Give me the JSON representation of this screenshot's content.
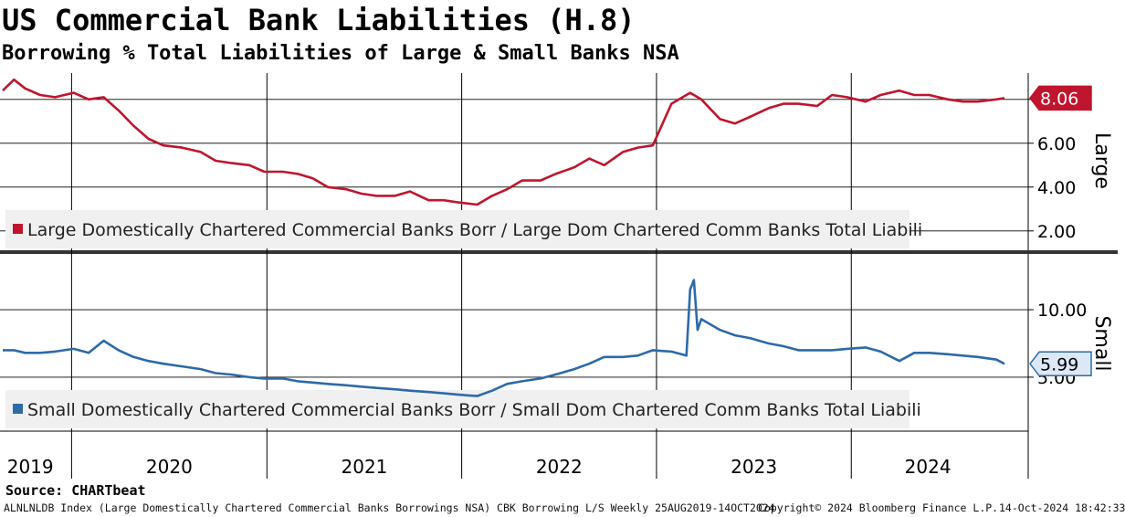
{
  "title": "US Commercial Bank Liabilities (H.8)",
  "subtitle": "Borrowing % Total Liabilities of Large & Small Banks NSA",
  "source": "Source: CHARTbeat",
  "footer": {
    "left": "ALNLNLDB Index (Large Domestically Chartered Commercial Banks Borrowings NSA) CBK Borrowing L/S  Weekly 25AUG2019-14OCT2024",
    "copyright": "Copyright© 2024 Bloomberg Finance L.P.",
    "timestamp": "14-Oct-2024 18:42:33"
  },
  "chart_data": [
    {
      "type": "line",
      "axis_label": "Large",
      "y_ticks": [
        "2.00",
        "4.00",
        "6.00",
        "8.00"
      ],
      "ylim": [
        1.2,
        9.2
      ],
      "last_value_label": "8.06",
      "legend": "Large Domestically Chartered Commercial Banks Borr / Large Dom Chartered Comm Banks Total Liabili",
      "color": "#c0152f",
      "series": [
        {
          "x": [
            "2019-08-25",
            "2019-09-15",
            "2019-10-06",
            "2019-11-03",
            "2019-12-01",
            "2020-01-05",
            "2020-02-02",
            "2020-03-01",
            "2020-03-29",
            "2020-04-26",
            "2020-05-24",
            "2020-06-21",
            "2020-07-26",
            "2020-08-30",
            "2020-09-27",
            "2020-10-25",
            "2020-11-29",
            "2020-12-27",
            "2021-01-31",
            "2021-02-28",
            "2021-03-28",
            "2021-04-25",
            "2021-05-30",
            "2021-06-27",
            "2021-07-25",
            "2021-08-29",
            "2021-09-26",
            "2021-10-31",
            "2021-11-28",
            "2021-12-26",
            "2022-01-30",
            "2022-02-27",
            "2022-03-27",
            "2022-04-24",
            "2022-05-29",
            "2022-06-26",
            "2022-07-31",
            "2022-08-28",
            "2022-09-25",
            "2022-10-30",
            "2022-11-27",
            "2022-12-25",
            "2023-01-29",
            "2023-02-26",
            "2023-03-05",
            "2023-03-12",
            "2023-03-26",
            "2023-04-30",
            "2023-05-28",
            "2023-06-25",
            "2023-07-30",
            "2023-08-27",
            "2023-09-24",
            "2023-10-29",
            "2023-11-26",
            "2023-12-24",
            "2024-01-28",
            "2024-02-25",
            "2024-03-31",
            "2024-04-28",
            "2024-05-26",
            "2024-06-30",
            "2024-07-28",
            "2024-08-25",
            "2024-09-29",
            "2024-10-14"
          ],
          "y": [
            8.4,
            8.9,
            8.5,
            8.2,
            8.1,
            8.3,
            8.0,
            8.1,
            7.5,
            6.8,
            6.2,
            5.9,
            5.8,
            5.6,
            5.2,
            5.1,
            5.0,
            4.7,
            4.7,
            4.6,
            4.4,
            4.0,
            3.9,
            3.7,
            3.6,
            3.6,
            3.8,
            3.4,
            3.4,
            3.3,
            3.2,
            3.6,
            3.9,
            4.3,
            4.3,
            4.6,
            4.9,
            5.3,
            5.0,
            5.6,
            5.8,
            5.9,
            7.8,
            8.2,
            8.3,
            8.2,
            8.0,
            7.1,
            6.9,
            7.2,
            7.6,
            7.8,
            7.8,
            7.7,
            8.2,
            8.1,
            7.9,
            8.2,
            8.4,
            8.2,
            8.2,
            8.0,
            7.9,
            7.9,
            8.0,
            8.06
          ]
        }
      ]
    },
    {
      "type": "line",
      "axis_label": "Small",
      "y_ticks": [
        "5.00",
        "10.00"
      ],
      "ylim": [
        1.0,
        14.0
      ],
      "last_value_label": "5.99",
      "legend": "Small Domestically Chartered Commercial Banks Borr / Small Dom Chartered Comm Banks Total Liabili",
      "color": "#2d6aa8",
      "series": [
        {
          "x": [
            "2019-08-25",
            "2019-09-15",
            "2019-10-06",
            "2019-11-03",
            "2019-12-01",
            "2020-01-05",
            "2020-02-02",
            "2020-03-01",
            "2020-03-29",
            "2020-04-26",
            "2020-05-24",
            "2020-06-21",
            "2020-07-26",
            "2020-08-30",
            "2020-09-27",
            "2020-10-25",
            "2020-11-29",
            "2020-12-27",
            "2021-01-31",
            "2021-02-28",
            "2021-03-28",
            "2021-04-25",
            "2021-05-30",
            "2021-06-27",
            "2021-07-25",
            "2021-08-29",
            "2021-09-26",
            "2021-10-31",
            "2021-11-28",
            "2021-12-26",
            "2022-01-30",
            "2022-02-27",
            "2022-03-27",
            "2022-04-24",
            "2022-05-29",
            "2022-06-26",
            "2022-07-31",
            "2022-08-28",
            "2022-09-25",
            "2022-10-30",
            "2022-11-27",
            "2022-12-25",
            "2023-01-29",
            "2023-02-26",
            "2023-03-05",
            "2023-03-12",
            "2023-03-19",
            "2023-03-26",
            "2023-04-30",
            "2023-05-28",
            "2023-06-25",
            "2023-07-30",
            "2023-08-27",
            "2023-09-24",
            "2023-10-29",
            "2023-11-26",
            "2023-12-24",
            "2024-01-28",
            "2024-02-25",
            "2024-03-31",
            "2024-04-28",
            "2024-05-26",
            "2024-06-30",
            "2024-07-28",
            "2024-08-25",
            "2024-09-29",
            "2024-10-14"
          ],
          "y": [
            7.0,
            7.0,
            6.8,
            6.8,
            6.9,
            7.1,
            6.8,
            7.7,
            7.0,
            6.5,
            6.2,
            6.0,
            5.8,
            5.6,
            5.3,
            5.2,
            5.0,
            4.9,
            4.9,
            4.7,
            4.6,
            4.5,
            4.4,
            4.3,
            4.2,
            4.1,
            4.0,
            3.9,
            3.8,
            3.7,
            3.6,
            4.0,
            4.5,
            4.7,
            4.9,
            5.2,
            5.6,
            6.0,
            6.5,
            6.5,
            6.6,
            7.0,
            6.9,
            6.6,
            11.5,
            12.2,
            8.5,
            9.3,
            8.5,
            8.1,
            7.9,
            7.5,
            7.3,
            7.0,
            7.0,
            7.0,
            7.1,
            7.2,
            6.9,
            6.2,
            6.8,
            6.8,
            6.7,
            6.6,
            6.5,
            6.3,
            5.99
          ]
        }
      ]
    }
  ],
  "x_axis": {
    "tick_labels": [
      "2019",
      "2020",
      "2021",
      "2022",
      "2023",
      "2024"
    ],
    "year_boundaries": [
      "2020-01-01",
      "2021-01-01",
      "2022-01-01",
      "2023-01-01",
      "2024-01-01"
    ],
    "start": "2019-08-25",
    "end": "2024-10-14"
  }
}
